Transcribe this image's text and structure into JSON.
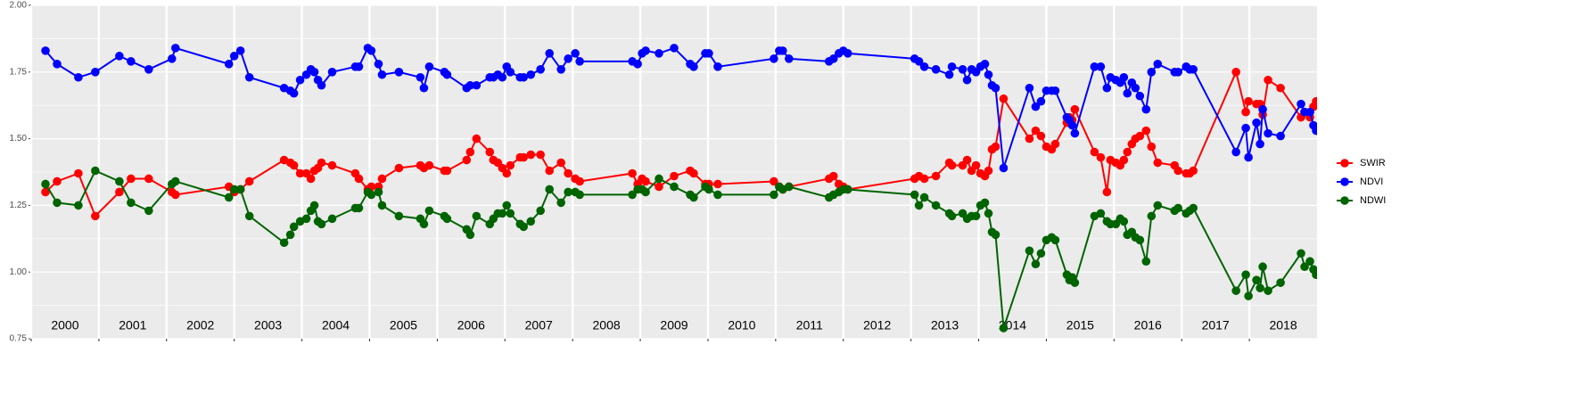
{
  "chart_data": {
    "type": "line",
    "x": [
      2000.211,
      2000.382,
      2000.697,
      2000.947,
      2001.303,
      2001.474,
      2001.737,
      2002.079,
      2002.132,
      2002.921,
      2003.0,
      2003.092,
      2003.224,
      2003.737,
      2003.829,
      2003.882,
      2003.974,
      2004.066,
      2004.132,
      2004.184,
      2004.237,
      2004.289,
      2004.447,
      2004.789,
      2004.842,
      2004.974,
      2005.026,
      2005.132,
      2005.184,
      2005.434,
      2005.75,
      2005.803,
      2005.882,
      2006.105,
      2006.145,
      2006.434,
      2006.487,
      2006.579,
      2006.776,
      2006.829,
      2006.895,
      2006.961,
      2007.026,
      2007.079,
      2007.224,
      2007.276,
      2007.382,
      2007.526,
      2007.658,
      2007.829,
      2007.934,
      2008.039,
      2008.105,
      2008.882,
      2008.961,
      2009.026,
      2009.079,
      2009.276,
      2009.5,
      2009.737,
      2009.789,
      2009.961,
      2010.013,
      2010.145,
      2010.974,
      2011.053,
      2011.105,
      2011.197,
      2011.789,
      2011.855,
      2011.934,
      2012.0,
      2012.066,
      2013.053,
      2013.118,
      2013.197,
      2013.368,
      2013.566,
      2013.605,
      2013.763,
      2013.829,
      2013.895,
      2013.961,
      2014.026,
      2014.092,
      2014.145,
      2014.197,
      2014.25,
      2014.368,
      2014.75,
      2014.842,
      2014.921,
      2015.0,
      2015.079,
      2015.132,
      2015.303,
      2015.342,
      2015.382,
      2015.421,
      2015.711,
      2015.803,
      2015.895,
      2015.947,
      2016.026,
      2016.092,
      2016.145,
      2016.197,
      2016.263,
      2016.316,
      2016.382,
      2016.474,
      2016.553,
      2016.645,
      2016.895,
      2016.947,
      2017.066,
      2017.118,
      2017.171,
      2017.803,
      2017.947,
      2017.987,
      2018.105,
      2018.158,
      2018.197,
      2018.276,
      2018.461,
      2018.763,
      2018.816,
      2018.895,
      2018.947,
      2018.987
    ],
    "series": [
      {
        "name": "SWIR",
        "color": "#ff0000",
        "values": [
          1.3,
          1.34,
          1.37,
          1.21,
          1.3,
          1.35,
          1.35,
          1.3,
          1.29,
          1.32,
          1.3,
          1.31,
          1.34,
          1.42,
          1.41,
          1.4,
          1.37,
          1.37,
          1.35,
          1.38,
          1.39,
          1.41,
          1.4,
          1.37,
          1.35,
          1.31,
          1.32,
          1.32,
          1.35,
          1.39,
          1.4,
          1.39,
          1.4,
          1.38,
          1.38,
          1.42,
          1.45,
          1.5,
          1.45,
          1.42,
          1.41,
          1.39,
          1.37,
          1.4,
          1.43,
          1.43,
          1.44,
          1.44,
          1.38,
          1.41,
          1.37,
          1.35,
          1.34,
          1.37,
          1.33,
          1.35,
          1.34,
          1.32,
          1.36,
          1.38,
          1.37,
          1.33,
          1.33,
          1.33,
          1.34,
          1.32,
          1.31,
          1.32,
          1.35,
          1.36,
          1.33,
          1.32,
          1.31,
          1.35,
          1.36,
          1.35,
          1.36,
          1.41,
          1.4,
          1.4,
          1.42,
          1.38,
          1.4,
          1.37,
          1.36,
          1.38,
          1.46,
          1.47,
          1.65,
          1.5,
          1.53,
          1.51,
          1.47,
          1.46,
          1.48,
          1.56,
          1.58,
          1.57,
          1.61,
          1.45,
          1.43,
          1.3,
          1.42,
          1.41,
          1.4,
          1.42,
          1.45,
          1.48,
          1.5,
          1.51,
          1.53,
          1.47,
          1.41,
          1.4,
          1.38,
          1.37,
          1.37,
          1.38,
          1.75,
          1.6,
          1.64,
          1.63,
          1.63,
          1.59,
          1.72,
          1.69,
          1.58,
          1.6,
          1.58,
          1.62,
          1.64
        ]
      },
      {
        "name": "NDVI",
        "color": "#0000ff",
        "values": [
          1.83,
          1.78,
          1.73,
          1.75,
          1.81,
          1.79,
          1.76,
          1.8,
          1.84,
          1.78,
          1.81,
          1.83,
          1.73,
          1.69,
          1.68,
          1.67,
          1.72,
          1.74,
          1.76,
          1.75,
          1.72,
          1.7,
          1.75,
          1.77,
          1.77,
          1.84,
          1.83,
          1.78,
          1.74,
          1.75,
          1.73,
          1.69,
          1.77,
          1.75,
          1.74,
          1.69,
          1.7,
          1.7,
          1.73,
          1.73,
          1.74,
          1.73,
          1.77,
          1.75,
          1.73,
          1.73,
          1.74,
          1.76,
          1.82,
          1.76,
          1.8,
          1.82,
          1.79,
          1.79,
          1.78,
          1.82,
          1.83,
          1.82,
          1.84,
          1.78,
          1.77,
          1.82,
          1.82,
          1.77,
          1.8,
          1.83,
          1.83,
          1.8,
          1.79,
          1.8,
          1.82,
          1.83,
          1.82,
          1.8,
          1.79,
          1.77,
          1.76,
          1.74,
          1.77,
          1.76,
          1.72,
          1.76,
          1.75,
          1.77,
          1.78,
          1.74,
          1.7,
          1.69,
          1.39,
          1.69,
          1.62,
          1.64,
          1.68,
          1.68,
          1.68,
          1.58,
          1.57,
          1.55,
          1.52,
          1.77,
          1.77,
          1.69,
          1.73,
          1.72,
          1.71,
          1.73,
          1.67,
          1.71,
          1.69,
          1.66,
          1.61,
          1.75,
          1.78,
          1.75,
          1.75,
          1.77,
          1.76,
          1.76,
          1.45,
          1.54,
          1.43,
          1.56,
          1.48,
          1.61,
          1.52,
          1.51,
          1.63,
          1.6,
          1.6,
          1.55,
          1.53
        ]
      },
      {
        "name": "NDWI",
        "color": "#006400",
        "values": [
          1.33,
          1.26,
          1.25,
          1.38,
          1.34,
          1.26,
          1.23,
          1.33,
          1.34,
          1.28,
          1.31,
          1.31,
          1.21,
          1.11,
          1.14,
          1.17,
          1.19,
          1.2,
          1.23,
          1.25,
          1.19,
          1.18,
          1.2,
          1.24,
          1.24,
          1.3,
          1.29,
          1.3,
          1.25,
          1.21,
          1.2,
          1.18,
          1.23,
          1.21,
          1.2,
          1.16,
          1.14,
          1.21,
          1.18,
          1.2,
          1.22,
          1.22,
          1.25,
          1.22,
          1.18,
          1.17,
          1.19,
          1.23,
          1.31,
          1.26,
          1.3,
          1.3,
          1.29,
          1.29,
          1.31,
          1.31,
          1.3,
          1.35,
          1.32,
          1.29,
          1.28,
          1.32,
          1.31,
          1.29,
          1.29,
          1.32,
          1.31,
          1.32,
          1.28,
          1.29,
          1.3,
          1.31,
          1.31,
          1.29,
          1.25,
          1.28,
          1.25,
          1.22,
          1.21,
          1.22,
          1.2,
          1.21,
          1.21,
          1.25,
          1.26,
          1.22,
          1.15,
          1.14,
          0.79,
          1.08,
          1.03,
          1.07,
          1.12,
          1.13,
          1.12,
          0.99,
          0.97,
          0.98,
          0.96,
          1.21,
          1.22,
          1.19,
          1.18,
          1.18,
          1.2,
          1.19,
          1.14,
          1.15,
          1.13,
          1.12,
          1.04,
          1.21,
          1.25,
          1.23,
          1.24,
          1.22,
          1.23,
          1.24,
          0.93,
          0.99,
          0.91,
          0.97,
          0.94,
          1.02,
          0.93,
          0.96,
          1.07,
          1.02,
          1.04,
          1.01,
          0.99
        ]
      }
    ],
    "xlim": [
      2000,
      2019
    ],
    "xticks": [
      {
        "value": 2000,
        "label": "2000"
      },
      {
        "value": 2001,
        "label": "2001"
      },
      {
        "value": 2002,
        "label": "2002"
      },
      {
        "value": 2003,
        "label": "2003"
      },
      {
        "value": 2004,
        "label": "2004"
      },
      {
        "value": 2005,
        "label": "2005"
      },
      {
        "value": 2006,
        "label": "2006"
      },
      {
        "value": 2007,
        "label": "2007"
      },
      {
        "value": 2008,
        "label": "2008"
      },
      {
        "value": 2009,
        "label": "2009"
      },
      {
        "value": 2010,
        "label": "2010"
      },
      {
        "value": 2011,
        "label": "2011"
      },
      {
        "value": 2012,
        "label": "2012"
      },
      {
        "value": 2013,
        "label": "2013"
      },
      {
        "value": 2014,
        "label": "2014"
      },
      {
        "value": 2015,
        "label": "2015"
      },
      {
        "value": 2016,
        "label": "2016"
      },
      {
        "value": 2017,
        "label": "2017"
      },
      {
        "value": 2018,
        "label": "2018"
      }
    ],
    "ylim": [
      0.75,
      2.0
    ],
    "yticks": [
      {
        "value": 0.75,
        "label": "0.75"
      },
      {
        "value": 1.0,
        "label": "1.00"
      },
      {
        "value": 1.25,
        "label": "1.25"
      },
      {
        "value": 1.5,
        "label": "1.50"
      },
      {
        "value": 1.75,
        "label": "1.75"
      },
      {
        "value": 2.0,
        "label": "2.00"
      }
    ],
    "grid": true,
    "legend": "right"
  }
}
